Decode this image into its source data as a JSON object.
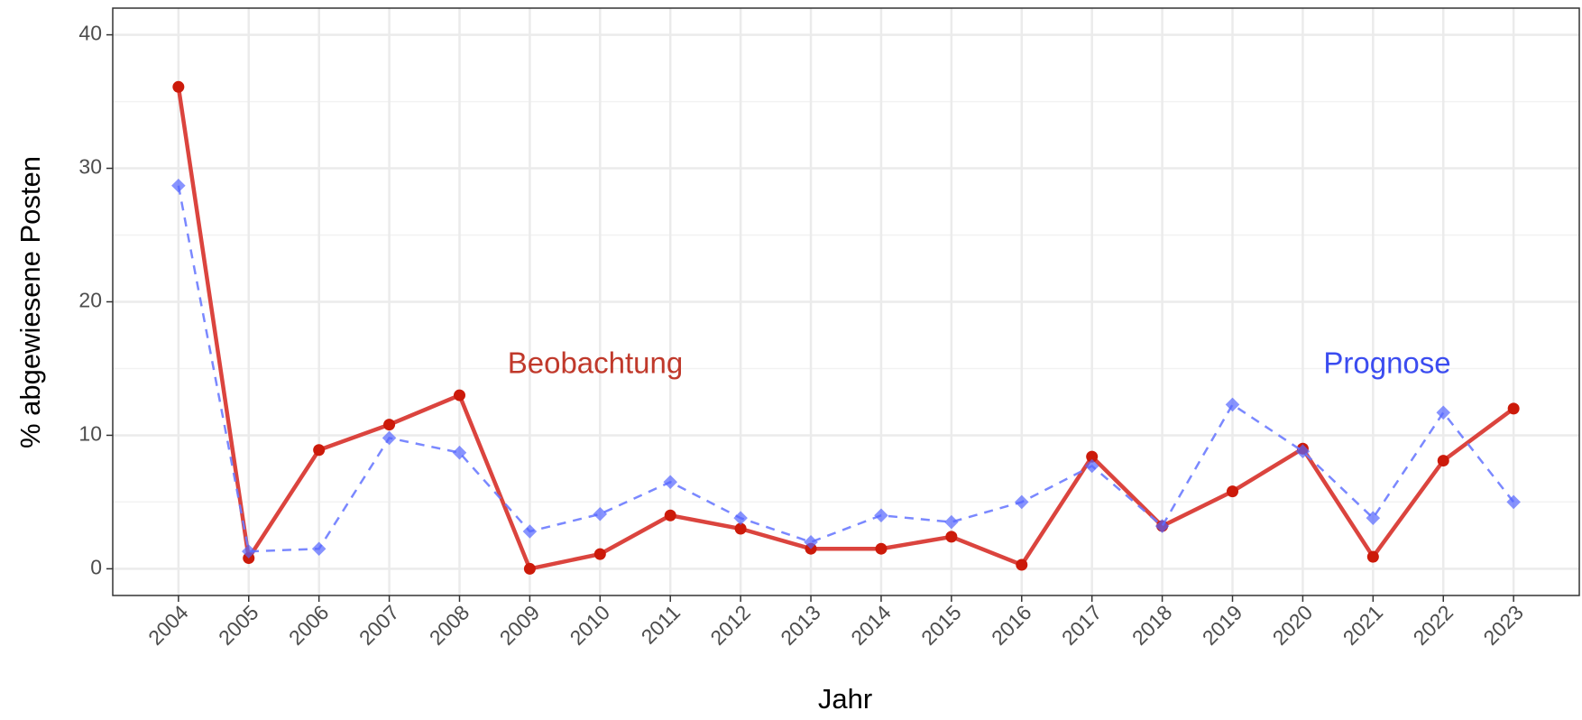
{
  "chart_data": {
    "type": "line",
    "x_label": "Jahr",
    "y_label": "% abgewiesene Posten",
    "categories": [
      "2004",
      "2005",
      "2006",
      "2007",
      "2008",
      "2009",
      "2010",
      "2011",
      "2012",
      "2013",
      "2014",
      "2015",
      "2016",
      "2017",
      "2018",
      "2019",
      "2020",
      "2021",
      "2022",
      "2023"
    ],
    "series": [
      {
        "name": "Beobachtung",
        "color": "#d93a34",
        "marker_color": "#cc1a0a",
        "dashed": false,
        "values": [
          36.1,
          0.8,
          8.9,
          10.8,
          13.0,
          0.0,
          1.1,
          4.0,
          3.0,
          1.5,
          1.5,
          2.4,
          0.3,
          8.4,
          3.2,
          5.8,
          9.0,
          0.9,
          8.1,
          12.0
        ]
      },
      {
        "name": "Prognose",
        "color": "#6b7bff",
        "marker_color": "#5566ff",
        "dashed": true,
        "values": [
          28.7,
          1.3,
          1.5,
          9.8,
          8.7,
          2.8,
          4.1,
          6.5,
          3.8,
          2.0,
          4.0,
          3.5,
          5.0,
          7.7,
          3.2,
          12.3,
          8.8,
          3.8,
          11.7,
          5.0
        ]
      }
    ],
    "annotation_colors": [
      "#c0392b",
      "#3b4cf0"
    ],
    "ylim": [
      -2,
      42
    ],
    "yticks": [
      0,
      10,
      20,
      30,
      40
    ],
    "yminor": [
      5,
      15,
      25,
      35
    ],
    "grid": true
  }
}
